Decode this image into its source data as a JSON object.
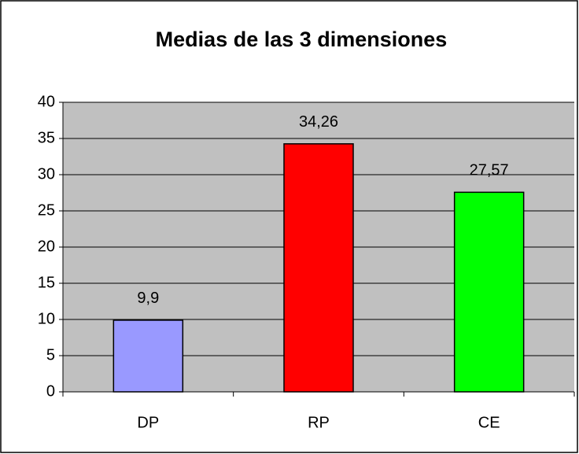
{
  "chart_data": {
    "type": "bar",
    "title": "Medias de las 3 dimensiones",
    "categories": [
      "DP",
      "RP",
      "CE"
    ],
    "values": [
      9.9,
      34.26,
      27.57
    ],
    "value_labels": [
      "9,9",
      "34,26",
      "27,57"
    ],
    "colors": [
      "#9999ff",
      "#ff0000",
      "#00ff00"
    ],
    "ylim": [
      0,
      40
    ],
    "yticks": [
      0,
      5,
      10,
      15,
      20,
      25,
      30,
      35,
      40
    ],
    "grid": true
  }
}
